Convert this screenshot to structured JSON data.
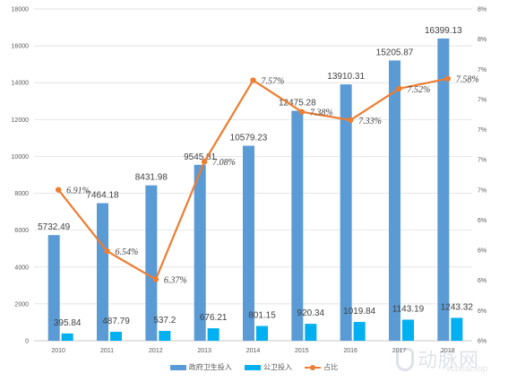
{
  "chart_data": {
    "type": "bar",
    "categories": [
      "2010",
      "2011",
      "2012",
      "2013",
      "2014",
      "2015",
      "2016",
      "2017",
      "2018"
    ],
    "series": [
      {
        "name": "政府卫生投入",
        "type": "bar",
        "axis": "left",
        "color": "#5B9BD5",
        "values": [
          5732.49,
          7464.18,
          8431.98,
          9545.81,
          10579.23,
          12475.28,
          13910.31,
          15205.87,
          16399.13
        ]
      },
      {
        "name": "公卫投入",
        "type": "bar",
        "axis": "left",
        "color": "#00B0F0",
        "values": [
          395.84,
          487.79,
          537.2,
          676.21,
          801.15,
          920.34,
          1019.84,
          1143.19,
          1243.32
        ]
      },
      {
        "name": "占比",
        "type": "line",
        "axis": "right",
        "color": "#ED7D31",
        "values": [
          6.91,
          6.54,
          6.37,
          7.08,
          7.57,
          7.38,
          7.33,
          7.52,
          7.58
        ],
        "labels": [
          "6.91%",
          "6.54%",
          "6.37%",
          "7.08%",
          "7.57%",
          "7.38%",
          "7.33%",
          "7.52%",
          "7.58%"
        ]
      }
    ],
    "bar_labels_gov": [
      "5732.49",
      "7464.18",
      "8431.98",
      "9545.81",
      "10579.23",
      "12475.28",
      "13910.31",
      "15205.87",
      "16399.13"
    ],
    "bar_labels_pub": [
      "395.84",
      "487.79",
      "537.2",
      "676.21",
      "801.15",
      "920.34",
      "1019.84",
      "1143.19",
      "1243.32"
    ],
    "y_left": {
      "min": 0,
      "max": 18000,
      "ticks": [
        "0",
        "2000",
        "4000",
        "6000",
        "8000",
        "10000",
        "12000",
        "14000",
        "16000",
        "18000"
      ]
    },
    "y_right": {
      "min": 6.0,
      "max": 8.0,
      "ticks": [
        "6%",
        "6%",
        "6%",
        "6%",
        "6%",
        "7%",
        "7%",
        "7%",
        "7%",
        "7%",
        "8%",
        "8%"
      ]
    },
    "grid": true,
    "legend_position": "bottom",
    "title": "",
    "xlabel": "",
    "ylabel": ""
  },
  "legend": {
    "items": [
      {
        "label": "政府卫生投入",
        "color": "#5B9BD5",
        "kind": "bar"
      },
      {
        "label": "公卫投入",
        "color": "#00B0F0",
        "kind": "bar"
      },
      {
        "label": "占比",
        "color": "#ED7D31",
        "kind": "line"
      }
    ]
  },
  "watermark": {
    "brand_cn": "动脉网",
    "domain": "vcbeat.top"
  }
}
